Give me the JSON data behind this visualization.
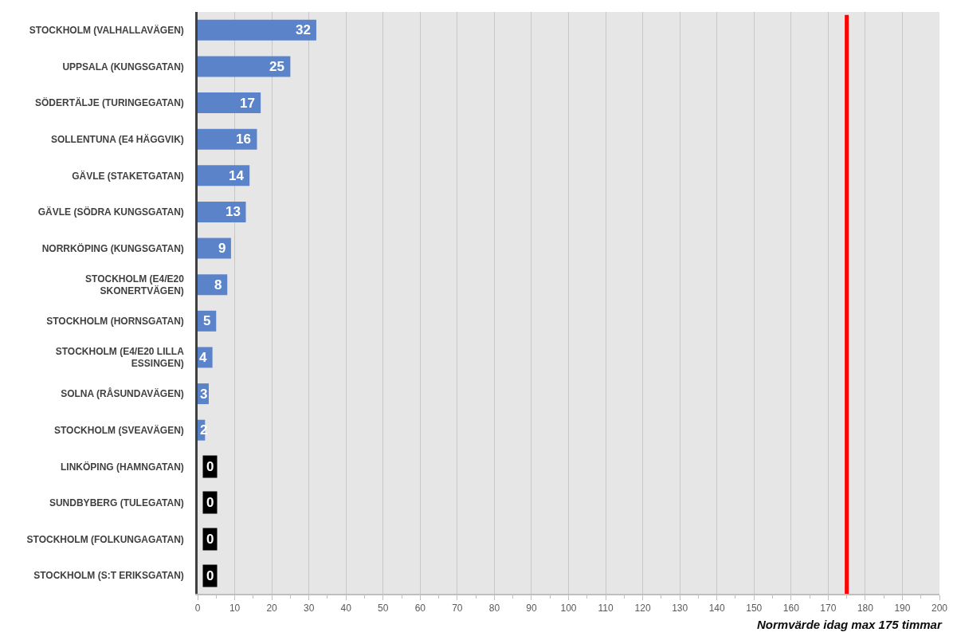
{
  "chart_data": {
    "type": "bar",
    "orientation": "horizontal",
    "categories": [
      "STOCKHOLM (VALHALLAVÄGEN)",
      "UPPSALA (KUNGSGATAN)",
      "SÖDERTÄLJE (TURINGEGATAN)",
      "SOLLENTUNA (E4 HÄGGVIK)",
      "GÄVLE (STAKETGATAN)",
      "GÄVLE (SÖDRA KUNGSGATAN)",
      "NORRKÖPING (KUNGSGATAN)",
      "STOCKHOLM (E4/E20 SKONERTVÄGEN)",
      "STOCKHOLM (HORNSGATAN)",
      "STOCKHOLM (E4/E20 LILLA ESSINGEN)",
      "SOLNA (RÅSUNDAVÄGEN)",
      "STOCKHOLM (SVEAVÄGEN)",
      "LINKÖPING (HAMNGATAN)",
      "SUNDBYBERG (TULEGATAN)",
      "STOCKHOLM (FOLKUNGAGATAN)",
      "STOCKHOLM (S:T ERIKSGATAN)"
    ],
    "values": [
      32,
      25,
      17,
      16,
      14,
      13,
      9,
      8,
      5,
      4,
      3,
      2,
      0,
      0,
      0,
      0
    ],
    "color": "#5b83c9",
    "data_labels": true,
    "xlabel": "Normvärde idag max 175 timmar",
    "xlim": [
      0,
      200
    ],
    "xticks": [
      0,
      {
        "value": 5,
        "label": null
      },
      10,
      {
        "value": 15,
        "label": null
      },
      20,
      {
        "value": 25,
        "label": null
      },
      30,
      {
        "value": 35,
        "label": null
      },
      40,
      {
        "value": 45,
        "label": null
      },
      50,
      {
        "value": 55,
        "label": null
      },
      60,
      {
        "value": 65,
        "label": null
      },
      70,
      {
        "value": 75,
        "label": null
      },
      80,
      {
        "value": 85,
        "label": null
      },
      90,
      {
        "value": 95,
        "label": null
      },
      100,
      {
        "value": 105,
        "label": null
      },
      110,
      {
        "value": 115,
        "label": null
      },
      120,
      {
        "value": 125,
        "label": null
      },
      130,
      {
        "value": 135,
        "label": null
      },
      140,
      {
        "value": 145,
        "label": null
      },
      150,
      {
        "value": 155,
        "label": null
      },
      160,
      {
        "value": 165,
        "label": null
      },
      170,
      {
        "value": 175,
        "label": null
      },
      180,
      {
        "value": 185,
        "label": null
      },
      190,
      {
        "value": 195,
        "label": null
      },
      200
    ],
    "grid": "x",
    "ref_lines": [
      {
        "axis": "x",
        "value": 175,
        "color": "#ff0000"
      }
    ]
  }
}
